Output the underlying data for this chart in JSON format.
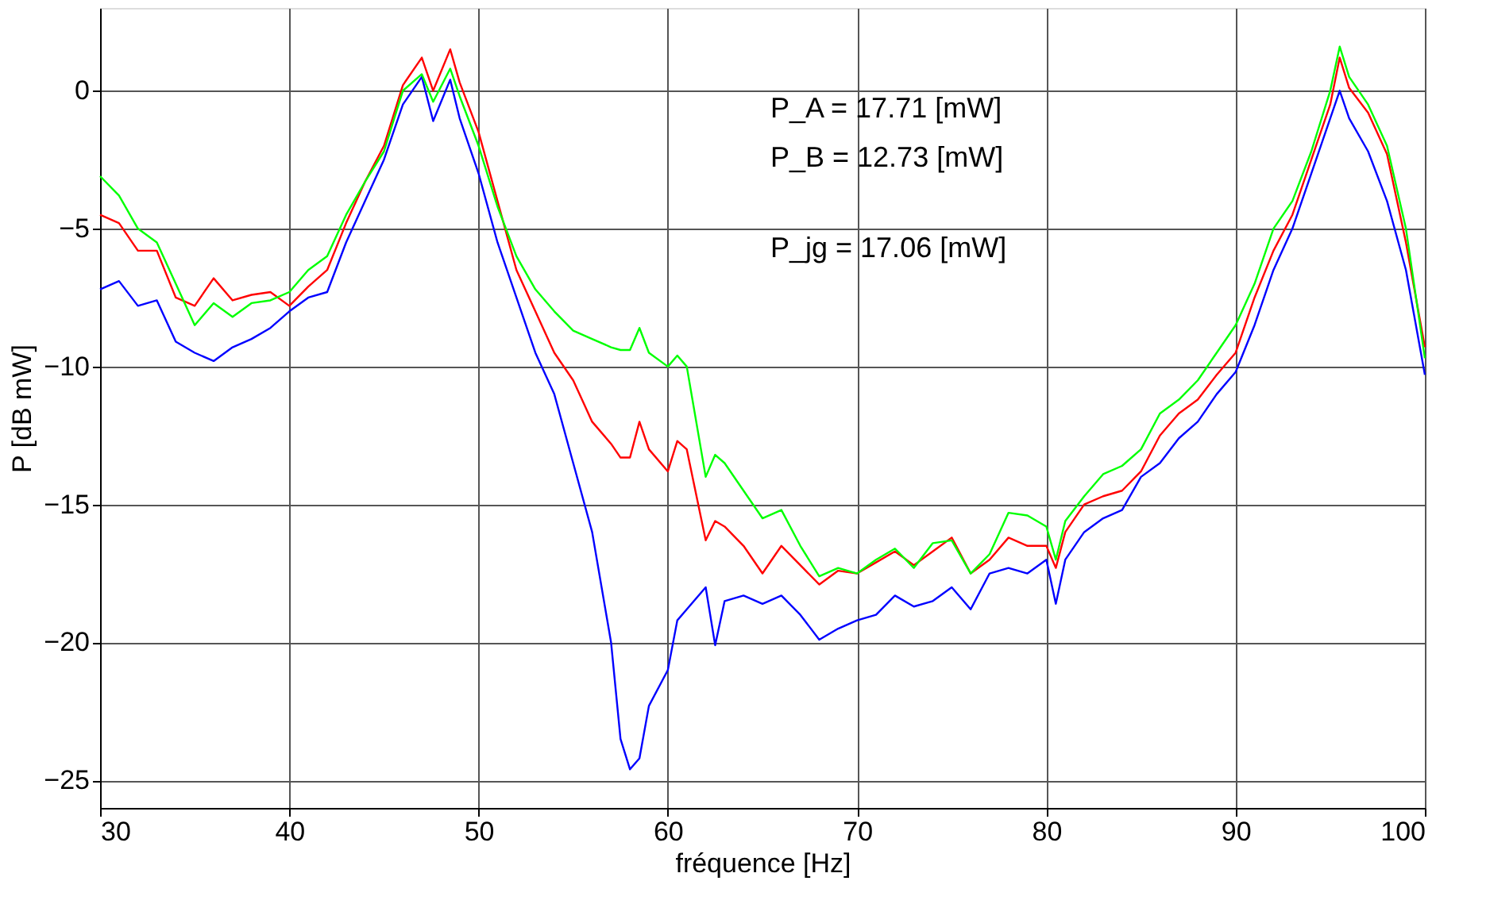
{
  "chart_data": {
    "type": "line",
    "xlabel": "fréquence [Hz]",
    "ylabel": "P [dB mW]",
    "x": [
      30,
      31,
      32,
      33,
      34,
      35,
      36,
      37,
      38,
      39,
      40,
      41,
      42,
      43,
      44,
      45,
      46,
      47,
      47.6,
      48.5,
      49,
      50,
      51,
      52,
      53,
      54,
      55,
      56,
      57,
      57.5,
      58,
      58.5,
      59,
      60,
      60.5,
      61,
      62,
      62.5,
      63,
      64,
      65,
      66,
      67,
      68,
      69,
      70,
      71,
      72,
      73,
      74,
      75,
      76,
      77,
      78,
      79,
      80,
      80.5,
      81,
      82,
      83,
      84,
      85,
      86,
      87,
      88,
      89,
      90,
      91,
      92,
      93,
      94,
      95,
      95.5,
      96,
      97,
      98,
      99,
      100
    ],
    "series": [
      {
        "color": "#0000ff",
        "values": [
          -7.2,
          -6.9,
          -7.8,
          -7.6,
          -9.1,
          -9.5,
          -9.8,
          -9.3,
          -9.0,
          -8.6,
          -8.0,
          -7.5,
          -7.3,
          -5.5,
          -4.0,
          -2.5,
          -0.5,
          0.5,
          -1.1,
          0.4,
          -1.0,
          -3.0,
          -5.5,
          -7.5,
          -9.5,
          -11.0,
          -13.5,
          -16.0,
          -20.0,
          -23.5,
          -24.6,
          -24.2,
          -22.3,
          -21.0,
          -19.2,
          -18.8,
          -18.0,
          -20.1,
          -18.5,
          -18.3,
          -18.6,
          -18.3,
          -19.0,
          -19.9,
          -19.5,
          -19.2,
          -19.0,
          -18.3,
          -18.7,
          -18.5,
          -18.0,
          -18.8,
          -17.5,
          -17.3,
          -17.5,
          -17.0,
          -18.6,
          -17.0,
          -16.0,
          -15.5,
          -15.2,
          -14.0,
          -13.5,
          -12.6,
          -12.0,
          -11.0,
          -10.2,
          -8.5,
          -6.5,
          -5.0,
          -3.0,
          -1.0,
          0.0,
          -1.0,
          -2.2,
          -4.0,
          -6.5,
          -10.3
        ]
      },
      {
        "color": "#ff0000",
        "values": [
          -4.5,
          -4.8,
          -5.8,
          -5.8,
          -7.5,
          -7.8,
          -6.8,
          -7.6,
          -7.4,
          -7.3,
          -7.8,
          -7.1,
          -6.5,
          -4.8,
          -3.3,
          -2.0,
          0.2,
          1.2,
          0.0,
          1.5,
          0.3,
          -1.5,
          -4.0,
          -6.5,
          -8.0,
          -9.5,
          -10.5,
          -12.0,
          -12.8,
          -13.3,
          -13.3,
          -12.0,
          -13.0,
          -13.8,
          -12.7,
          -13.0,
          -16.3,
          -15.6,
          -15.8,
          -16.5,
          -17.5,
          -16.5,
          -17.2,
          -17.9,
          -17.4,
          -17.5,
          -17.1,
          -16.7,
          -17.2,
          -16.7,
          -16.2,
          -17.5,
          -17.0,
          -16.2,
          -16.5,
          -16.5,
          -17.3,
          -16.0,
          -15.0,
          -14.7,
          -14.5,
          -13.8,
          -12.5,
          -11.7,
          -11.2,
          -10.3,
          -9.5,
          -7.5,
          -5.8,
          -4.5,
          -2.5,
          -0.5,
          1.2,
          0.1,
          -0.8,
          -2.3,
          -5.5,
          -9.3
        ]
      },
      {
        "color": "#00ff00",
        "values": [
          -3.1,
          -3.8,
          -5.0,
          -5.5,
          -7.0,
          -8.5,
          -7.7,
          -8.2,
          -7.7,
          -7.6,
          -7.3,
          -6.5,
          -6.0,
          -4.5,
          -3.3,
          -2.2,
          0.0,
          0.6,
          -0.4,
          0.8,
          -0.2,
          -2.0,
          -4.2,
          -6.0,
          -7.2,
          -8.0,
          -8.7,
          -9.0,
          -9.3,
          -9.4,
          -9.4,
          -8.6,
          -9.5,
          -10.0,
          -9.6,
          -10.0,
          -14.0,
          -13.2,
          -13.5,
          -14.5,
          -15.5,
          -15.2,
          -16.5,
          -17.6,
          -17.3,
          -17.5,
          -17.0,
          -16.6,
          -17.3,
          -16.4,
          -16.3,
          -17.5,
          -16.8,
          -15.3,
          -15.4,
          -15.8,
          -17.0,
          -15.6,
          -14.7,
          -13.9,
          -13.6,
          -13.0,
          -11.7,
          -11.2,
          -10.5,
          -9.5,
          -8.5,
          -7.0,
          -5.0,
          -4.0,
          -2.2,
          0.0,
          1.6,
          0.5,
          -0.5,
          -2.0,
          -5.0,
          -9.7
        ]
      }
    ],
    "xlim": [
      30,
      100
    ],
    "xticks": [
      30,
      40,
      50,
      60,
      70,
      80,
      90,
      100
    ],
    "ylim": [
      -26,
      3
    ],
    "yticks": [
      -25,
      -20,
      -15,
      -10,
      -5,
      0
    ],
    "grid": true,
    "legend": false,
    "line_style": "solid",
    "marker": "none",
    "annotations": [
      "P_A = 17.71 [mW]",
      "P_B = 12.73 [mW]",
      "P_jg = 17.06 [mW]"
    ]
  }
}
